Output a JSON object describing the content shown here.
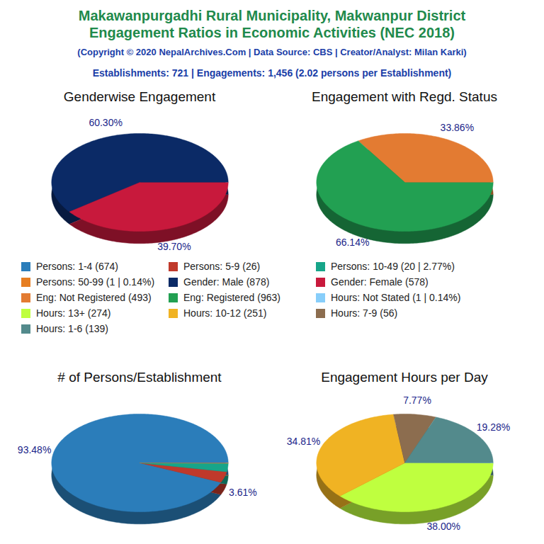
{
  "title": [
    "Makawanpurgadhi Rural Municipality, Makwanpur District",
    "Engagement Ratios in Economic Activities (NEC 2018)"
  ],
  "subtitle": "(Copyright © 2020 NepalArchives.Com | Data Source: CBS | Creator/Analyst: Milan Karki)",
  "summary": "Establishments: 721 | Engagements: 1,456 (2.02 persons per Establishment)",
  "chart_data": [
    {
      "type": "pie",
      "title": "# of Persons/Establishment",
      "categories": [
        "Persons: 1-4 (674)",
        "Persons: 5-9 (26)",
        "Persons: 10-49 (20 | 2.77%)",
        "Persons: 50-99 (1 | 0.14%)"
      ],
      "values": [
        93.48,
        3.61,
        2.77,
        0.14
      ],
      "value_labels": [
        "93.48%",
        "3.61%",
        null,
        null
      ],
      "colors": [
        "#2b7dba",
        "#c0392b",
        "#17a589",
        "#e67e22"
      ],
      "data_labels": true,
      "tick_labels": false
    },
    {
      "type": "pie",
      "title": "Genderwise Engagement",
      "categories": [
        "Gender: Male (878)",
        "Gender: Female (578)"
      ],
      "values": [
        60.3,
        39.7
      ],
      "value_labels": [
        "60.30%",
        "39.70%"
      ],
      "colors": [
        "#0b2a66",
        "#c8193c"
      ],
      "data_labels": true,
      "tick_labels": false
    },
    {
      "type": "pie",
      "title": "Engagement with Regd. Status",
      "categories": [
        "Eng: Not Registered (493)",
        "Eng: Registered (963)"
      ],
      "values": [
        33.86,
        66.14
      ],
      "value_labels": [
        "33.86%",
        "66.14%"
      ],
      "colors": [
        "#e37b32",
        "#22a052"
      ],
      "data_labels": true,
      "tick_labels": false
    },
    {
      "type": "pie",
      "title": "Engagement Hours per Day",
      "categories": [
        "Hours: Not Stated (1 | 0.14%)",
        "Hours: 13+ (274)",
        "Hours: 10-12 (251)",
        "Hours: 7-9 (56)",
        "Hours: 1-6 (139)"
      ],
      "values": [
        0.14,
        38.0,
        34.81,
        7.77,
        19.28
      ],
      "value_labels": [
        null,
        "38.00%",
        "34.81%",
        "7.77%",
        "19.28%"
      ],
      "colors": [
        "#87cefa",
        "#bfff3f",
        "#f0b323",
        "#8c6d4f",
        "#538a8c"
      ],
      "data_labels": true,
      "tick_labels": false
    }
  ]
}
